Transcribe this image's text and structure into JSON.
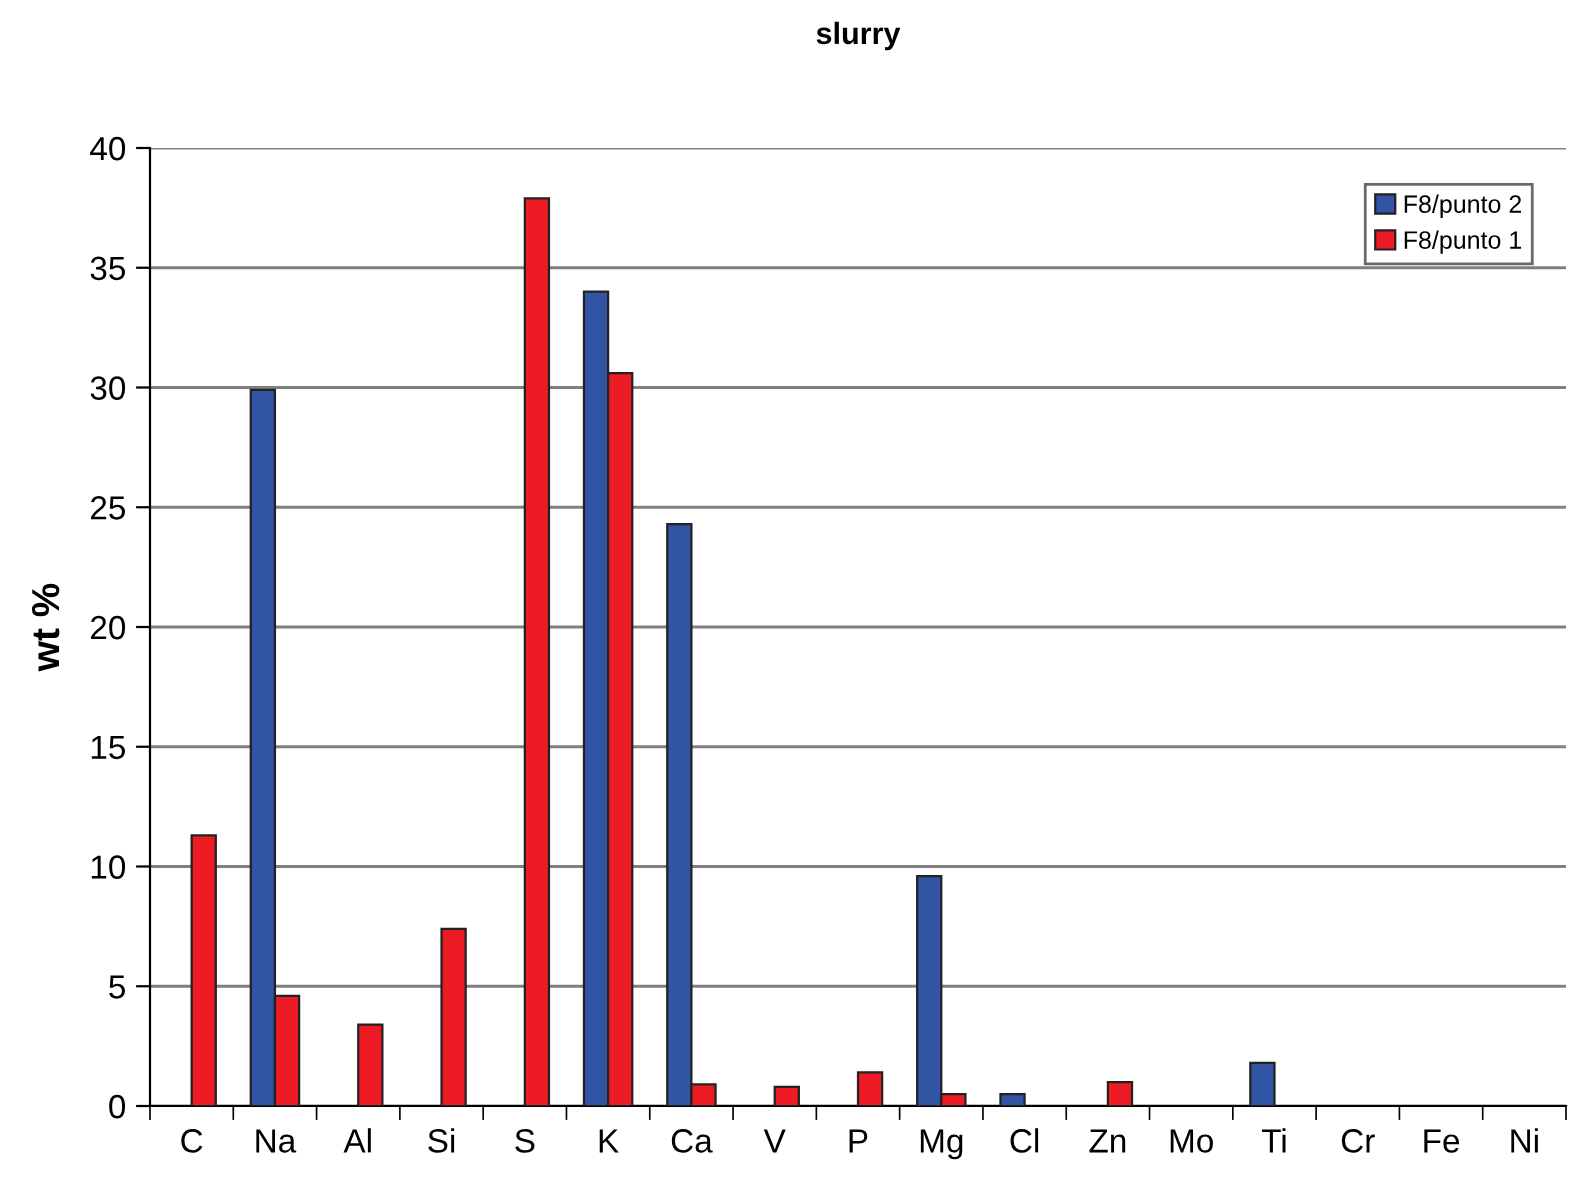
{
  "chart_data": {
    "type": "bar",
    "title": "slurry",
    "ylabel": "wt %",
    "categories": [
      "C",
      "Na",
      "Al",
      "Si",
      "S",
      "K",
      "Ca",
      "V",
      "P",
      "Mg",
      "Cl",
      "Zn",
      "Mo",
      "Ti",
      "Cr",
      "Fe",
      "Ni"
    ],
    "series": [
      {
        "name": "F8/punto 2",
        "color": "#3155a4",
        "values": [
          null,
          29.9,
          null,
          null,
          null,
          34.0,
          24.3,
          null,
          null,
          9.6,
          0.5,
          null,
          null,
          1.8,
          null,
          null,
          null
        ]
      },
      {
        "name": "F8/punto 1",
        "color": "#ed1c24",
        "values": [
          11.3,
          4.6,
          3.4,
          7.4,
          37.9,
          30.6,
          0.9,
          0.8,
          1.4,
          0.5,
          null,
          1.0,
          null,
          null,
          null,
          null,
          null
        ]
      }
    ],
    "ylim": [
      0,
      40
    ],
    "yticks": [
      0,
      5,
      10,
      15,
      20,
      25,
      30,
      35,
      40
    ],
    "grid": "y",
    "legend": "top right"
  }
}
